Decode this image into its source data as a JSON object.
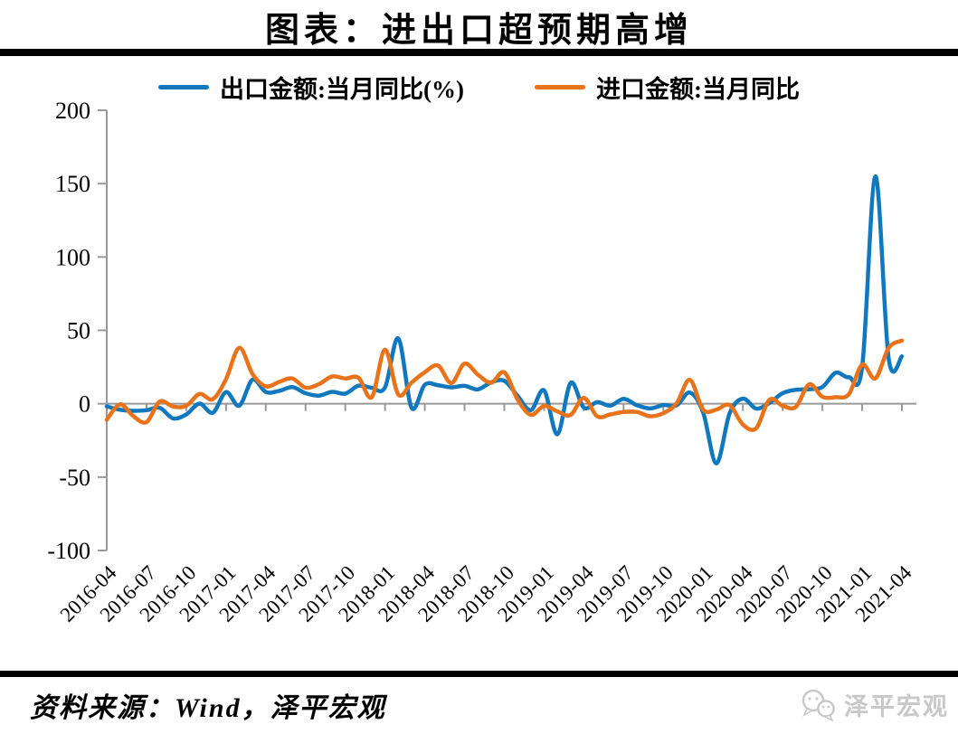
{
  "title": "图表：进出口超预期高增",
  "legend": {
    "items": [
      {
        "label": "出口金额:当月同比(%)",
        "color": "#1178BE"
      },
      {
        "label": "进口金额:当月同比",
        "color": "#E9731A"
      }
    ]
  },
  "footer": {
    "source_label": "资料来源：Wind，泽平宏观",
    "watermark_label": "泽平宏观",
    "watermark_icon": "wechat-icon",
    "watermark_color": "#c8c8c8"
  },
  "chart_data": {
    "type": "line",
    "smoothed": true,
    "title": "图表：进出口超预期高增",
    "legend_position": "top",
    "grid": false,
    "zero_line": true,
    "axis_color": "#999999",
    "ylim": [
      -100,
      200
    ],
    "yticks": [
      200,
      150,
      100,
      50,
      0,
      -50,
      -100
    ],
    "xtick_labels": [
      "2016-04",
      "2016-07",
      "2016-10",
      "2017-01",
      "2017-04",
      "2017-07",
      "2017-10",
      "2018-01",
      "2018-04",
      "2018-07",
      "2018-10",
      "2019-01",
      "2019-04",
      "2019-07",
      "2019-10",
      "2020-01",
      "2020-04",
      "2020-07",
      "2020-10",
      "2021-01",
      "2021-04"
    ],
    "x": [
      "2016-04",
      "2016-05",
      "2016-06",
      "2016-07",
      "2016-08",
      "2016-09",
      "2016-10",
      "2016-11",
      "2016-12",
      "2017-01",
      "2017-02",
      "2017-03",
      "2017-04",
      "2017-05",
      "2017-06",
      "2017-07",
      "2017-08",
      "2017-09",
      "2017-10",
      "2017-11",
      "2017-12",
      "2018-01",
      "2018-02",
      "2018-03",
      "2018-04",
      "2018-05",
      "2018-06",
      "2018-07",
      "2018-08",
      "2018-09",
      "2018-10",
      "2018-11",
      "2018-12",
      "2019-01",
      "2019-02",
      "2019-03",
      "2019-04",
      "2019-05",
      "2019-06",
      "2019-07",
      "2019-08",
      "2019-09",
      "2019-10",
      "2019-11",
      "2019-12",
      "2020-01",
      "2020-02",
      "2020-03",
      "2020-04",
      "2020-05",
      "2020-06",
      "2020-07",
      "2020-08",
      "2020-09",
      "2020-10",
      "2020-11",
      "2020-12",
      "2021-01",
      "2021-02",
      "2021-03",
      "2021-04"
    ],
    "series": [
      {
        "name": "出口金额:当月同比(%)",
        "color": "#1178BE",
        "values": [
          -1.8,
          -4.1,
          -4.8,
          -4.4,
          -2.8,
          -10.0,
          -7.3,
          0.1,
          -6.1,
          7.9,
          -1.3,
          16.4,
          8.0,
          8.7,
          11.3,
          7.2,
          5.5,
          8.1,
          6.9,
          12.3,
          10.9,
          11.1,
          44.5,
          -2.7,
          12.9,
          12.6,
          11.2,
          12.2,
          9.8,
          14.5,
          15.6,
          5.4,
          -4.4,
          9.1,
          -20.8,
          14.2,
          -2.7,
          1.1,
          -1.3,
          3.3,
          -1.0,
          -3.2,
          -0.9,
          -1.1,
          7.6,
          -6.0,
          -40.6,
          -6.6,
          3.5,
          -3.3,
          0.5,
          7.2,
          9.5,
          9.9,
          11.4,
          21.1,
          18.1,
          24.8,
          154.9,
          30.6,
          32.3
        ]
      },
      {
        "name": "进口金额:当月同比",
        "color": "#E9731A",
        "values": [
          -10.9,
          -0.4,
          -8.4,
          -12.5,
          1.5,
          -1.9,
          -1.4,
          6.7,
          3.1,
          16.7,
          38.1,
          20.3,
          11.9,
          14.8,
          17.2,
          11.0,
          13.3,
          18.6,
          17.2,
          17.7,
          4.5,
          36.8,
          6.3,
          14.4,
          21.5,
          26.0,
          14.1,
          27.3,
          19.9,
          14.3,
          21.4,
          3.0,
          -7.6,
          -1.5,
          -5.2,
          -7.6,
          4.0,
          -8.5,
          -7.3,
          -5.6,
          -5.6,
          -8.5,
          -6.4,
          0.3,
          16.3,
          -4.0,
          -4.0,
          -0.9,
          -14.2,
          -16.7,
          2.7,
          -1.4,
          -2.1,
          13.2,
          4.7,
          4.5,
          6.5,
          26.6,
          17.3,
          38.1,
          43.1
        ]
      }
    ]
  }
}
